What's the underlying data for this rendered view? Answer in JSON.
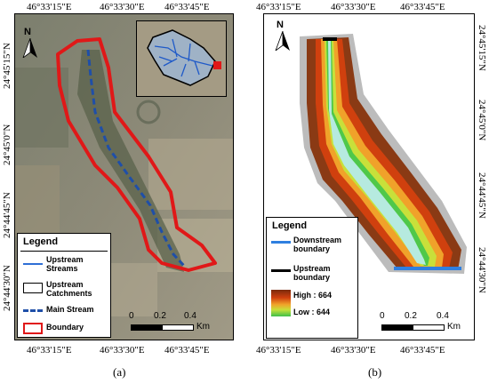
{
  "panel_a": {
    "top_ticks": [
      "46°33'15\"E",
      "46°33'30\"E",
      "46°33'45\"E"
    ],
    "bottom_ticks": [
      "46°33'15\"E",
      "46°33'30\"E",
      "46°33'45\"E"
    ],
    "left_ticks": [
      "24°45'15\"N",
      "24°45'0\"N",
      "24°44'45\"N",
      "24°44'30\"N"
    ],
    "right_ticks": [
      "24°45'15\"N",
      "24°45'0\"N",
      "24°44'45\"N",
      "24°44'30\"N"
    ],
    "north_label": "N",
    "legend": {
      "title": "Legend",
      "items": [
        {
          "label": "Upstream Streams",
          "color": "#2f6fd6"
        },
        {
          "label": "Upstream Catchments",
          "color": "#000000"
        },
        {
          "label": "Main Stream",
          "color": "#1f4fa8"
        },
        {
          "label": "Boundary",
          "color": "#e01818"
        }
      ]
    },
    "scale": {
      "ticks": [
        "0",
        "0.2",
        "0.4"
      ],
      "unit": "Km"
    },
    "caption": "(a)"
  },
  "panel_b": {
    "top_ticks": [
      "46°33'15\"E",
      "46°33'30\"E",
      "46°33'45\"E"
    ],
    "bottom_ticks": [
      "46°33'15\"E",
      "46°33'30\"E",
      "46°33'45\"E"
    ],
    "right_ticks": [
      "24°45'15\"N",
      "24°45'0\"N",
      "24°44'45\"N",
      "24°44'30\"N"
    ],
    "north_label": "N",
    "legend": {
      "title": "Legend",
      "downstream": "Downstream boundary",
      "upstream": "Upstream boundary",
      "high": "High : 664",
      "low": "Low : 644",
      "downstream_color": "#2f7fe0",
      "upstream_color": "#000000"
    },
    "scale": {
      "ticks": [
        "0",
        "0.2",
        "0.4"
      ],
      "unit": "Km"
    },
    "caption": "(b)"
  }
}
